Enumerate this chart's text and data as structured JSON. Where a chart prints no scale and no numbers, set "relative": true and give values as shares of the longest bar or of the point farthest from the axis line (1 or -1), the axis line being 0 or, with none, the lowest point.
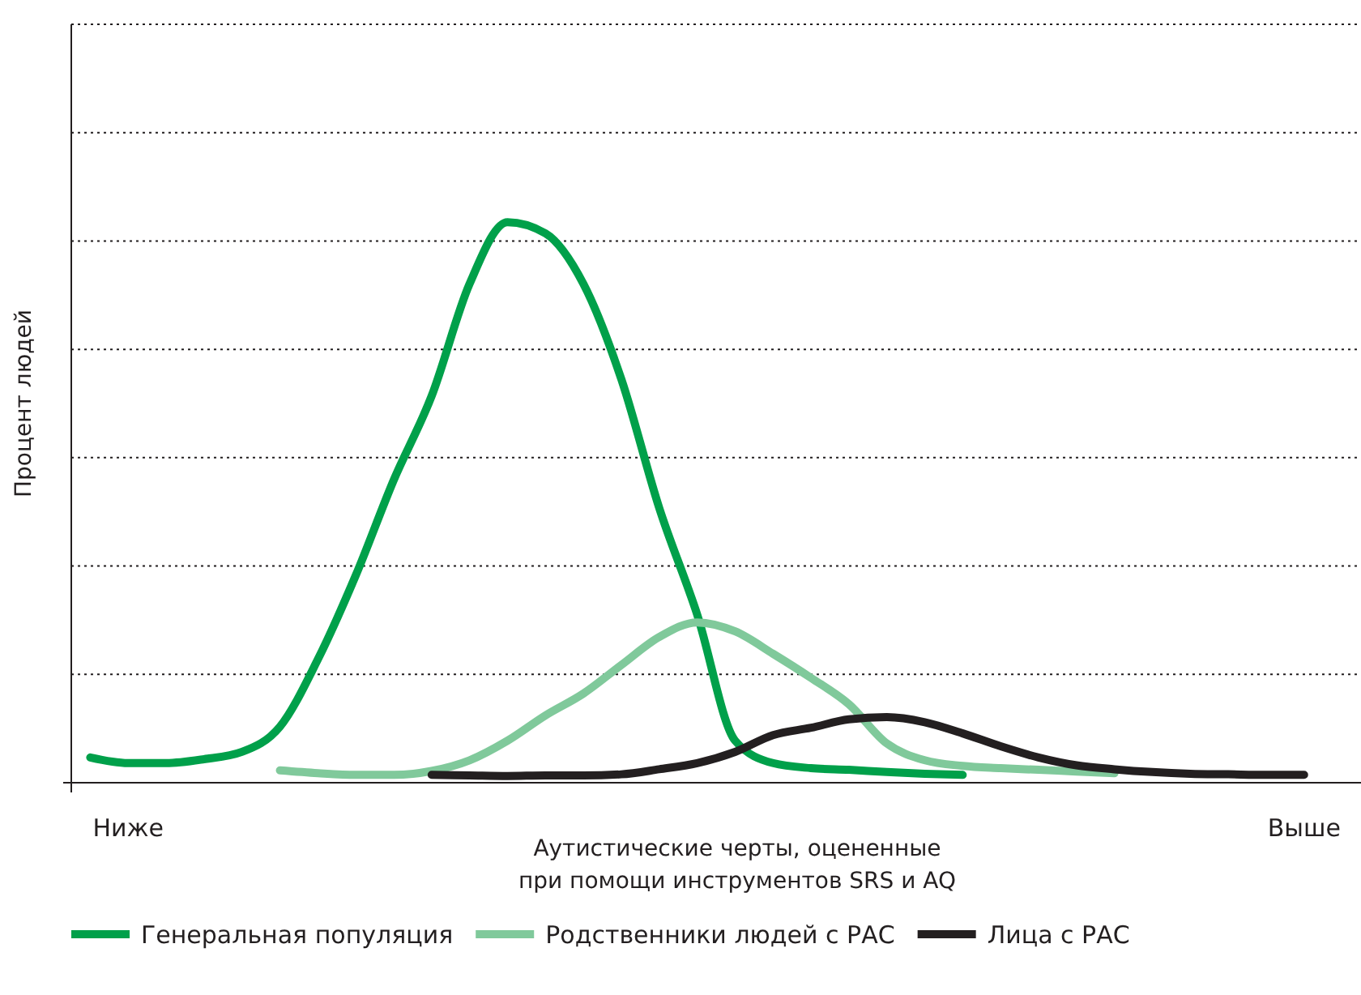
{
  "chart_data": {
    "type": "line",
    "relative": true,
    "xlabel": "Аутистические черты, оцененные\nпри помощи инструментов SRS и AQ",
    "ylabel": "Процент людей",
    "grid": "y",
    "legend": "bottom",
    "line_style": "solid",
    "marker": "none",
    "categories": [
      null,
      "Ниже",
      null,
      null,
      null,
      null,
      null,
      null,
      null,
      null,
      null,
      null,
      null,
      null,
      null,
      null,
      null,
      null,
      null,
      null,
      null,
      null,
      null,
      null,
      null,
      null,
      null,
      null,
      null,
      null,
      null,
      null,
      "Выше",
      null
    ],
    "series": [
      {
        "name": "Генеральная популяция",
        "color": "#00a04a",
        "values": [
          0.045,
          0.035,
          0.035,
          0.042,
          0.055,
          0.1,
          0.22,
          0.37,
          0.54,
          0.69,
          0.89,
          1,
          0.98,
          0.89,
          0.72,
          0.49,
          0.3,
          0.075,
          0.035,
          0.026,
          0.023,
          0.019,
          0.016,
          0.014,
          null,
          null,
          null,
          null,
          null,
          null,
          null,
          null,
          null,
          null
        ]
      },
      {
        "name": "Родственники людей с РАС",
        "color": "#80c99b",
        "values": [
          null,
          null,
          null,
          null,
          null,
          0.022,
          0.017,
          0.014,
          0.014,
          0.021,
          0.04,
          0.075,
          0.12,
          0.159,
          0.21,
          0.26,
          0.286,
          0.27,
          0.23,
          0.187,
          0.14,
          0.07,
          0.04,
          0.03,
          0.026,
          0.023,
          0.02,
          0.017,
          null,
          null,
          null,
          null,
          null,
          null
        ]
      },
      {
        "name": "Лица с РАС",
        "color": "#231f20",
        "values": [
          null,
          null,
          null,
          null,
          null,
          null,
          null,
          null,
          null,
          0.014,
          0.013,
          0.012,
          0.013,
          0.013,
          0.015,
          0.024,
          0.035,
          0.055,
          0.085,
          0.098,
          0.113,
          0.117,
          0.108,
          0.088,
          0.065,
          0.045,
          0.031,
          0.024,
          0.019,
          0.016,
          0.015,
          0.014,
          0.014,
          null
        ]
      }
    ]
  }
}
